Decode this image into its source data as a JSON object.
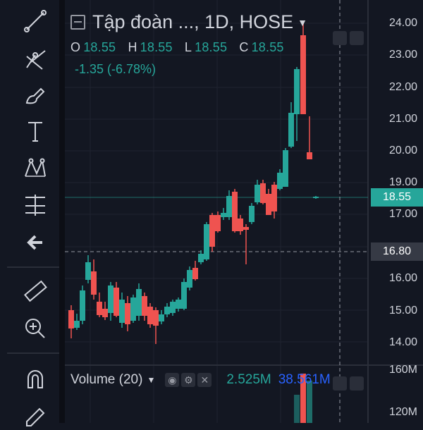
{
  "symbol": {
    "title": "Tập đoàn ..., 1D, HOSE"
  },
  "ohlc": {
    "o_label": "O",
    "o": "18.55",
    "h_label": "H",
    "h": "18.55",
    "l_label": "L",
    "l": "18.55",
    "c_label": "C",
    "c": "18.55"
  },
  "change": "-1.35 (-6.78%)",
  "price_axis": [
    "24.00",
    "23.00",
    "22.00",
    "21.00",
    "20.00",
    "19.00",
    "17.00",
    "16.00",
    "15.00",
    "14.00"
  ],
  "current_price_tag": "18.55",
  "crosshair_price_tag": "16.80",
  "volume": {
    "title": "Volume (20)",
    "value1": "2.525M",
    "value2": "38.561M",
    "axis": [
      "160M",
      "120M"
    ]
  },
  "colors": {
    "up": "#26a69a",
    "down": "#ef5350",
    "bg": "#131722",
    "grid": "#1e222d",
    "text": "#d1d4dc",
    "accent": "#2962ff"
  },
  "tools": [
    "trend-line-icon",
    "pitchfork-icon",
    "brush-icon",
    "text-icon",
    "pattern-icon",
    "measure-levels-icon",
    "back-arrow-icon",
    "ruler-icon",
    "zoom-in-icon",
    "magnet-icon",
    "pencil-lock-icon"
  ]
}
